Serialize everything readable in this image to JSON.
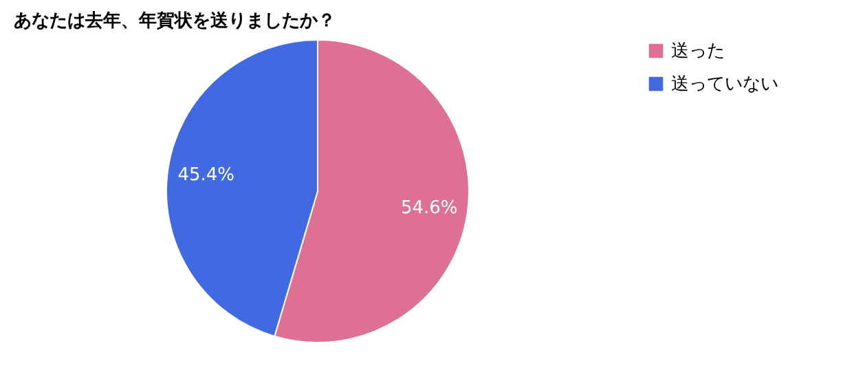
{
  "chart_data": {
    "type": "pie",
    "title": "あなたは去年、年賀状を送りましたか？",
    "categories": [
      "送った",
      "送っていない"
    ],
    "values": [
      54.6,
      45.4
    ],
    "colors": [
      "#de7193",
      "#4169e1"
    ],
    "value_labels": [
      "54.6%",
      "45.4%"
    ],
    "legend": "right"
  }
}
